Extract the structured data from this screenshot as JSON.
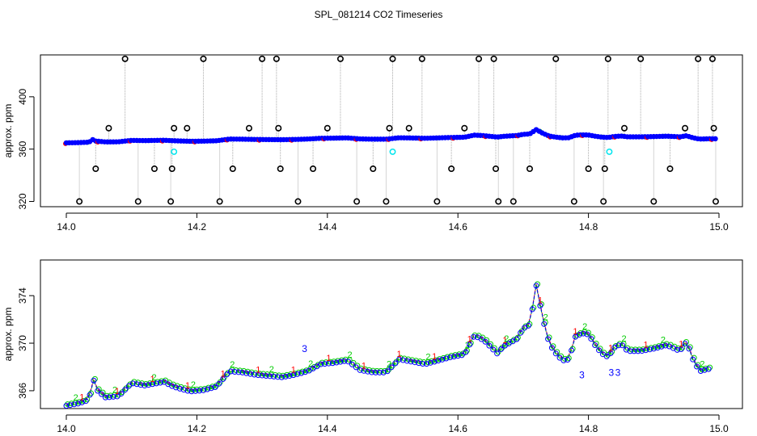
{
  "title": "SPL_081214  CO2 Timeseries",
  "chart_data": [
    {
      "type": "scatter",
      "title": "SPL_081214  CO2 Timeseries",
      "ylabel": "approx. ppm",
      "xlim": [
        14.0,
        15.0
      ],
      "ylim": [
        316,
        432
      ],
      "xticks": [
        "14.0",
        "14.2",
        "14.4",
        "14.6",
        "14.8",
        "15.0"
      ],
      "yticks": [
        "320",
        "360",
        "400"
      ],
      "colors": {
        "series1": "#ff0000",
        "series2": "#00cc00",
        "series3": "#0000ff",
        "reject": "#000000",
        "flag": "#00e5ee",
        "drop": "#aaaaaa"
      },
      "outlier_x": [
        14.02,
        14.045,
        14.065,
        14.09,
        14.11,
        14.135,
        14.16,
        14.162,
        14.165,
        14.185,
        14.21,
        14.235,
        14.255,
        14.28,
        14.3,
        14.322,
        14.325,
        14.328,
        14.355,
        14.378,
        14.4,
        14.42,
        14.445,
        14.47,
        14.49,
        14.495,
        14.5,
        14.525,
        14.545,
        14.568,
        14.59,
        14.61,
        14.632,
        14.655,
        14.658,
        14.662,
        14.685,
        14.71,
        14.75,
        14.778,
        14.8,
        14.823,
        14.825,
        14.83,
        14.855,
        14.88,
        14.9,
        14.925,
        14.948,
        14.968,
        14.99,
        14.992,
        14.995
      ],
      "outlier_y": [
        320,
        345,
        376,
        429,
        320,
        345,
        320,
        345,
        376,
        376,
        429,
        320,
        345,
        376,
        429,
        429,
        376,
        345,
        320,
        345,
        376,
        429,
        320,
        345,
        320,
        376,
        429,
        376,
        429,
        320,
        345,
        376,
        429,
        429,
        345,
        320,
        320,
        345,
        429,
        320,
        345,
        320,
        345,
        429,
        376,
        429,
        320,
        345,
        376,
        429,
        429,
        376,
        320
      ],
      "flag_points": [
        [
          14.165,
          358
        ],
        [
          14.5,
          358
        ],
        [
          14.832,
          358
        ]
      ]
    },
    {
      "type": "line",
      "ylabel": "approx. ppm",
      "xlim": [
        14.0,
        15.0
      ],
      "ylim": [
        364.5,
        377.0
      ],
      "xticks": [
        "14.0",
        "14.2",
        "14.4",
        "14.6",
        "14.8",
        "15.0"
      ],
      "yticks": [
        "366",
        "370",
        "374"
      ],
      "markers": [
        "1",
        "2",
        "3"
      ],
      "series": [
        {
          "name": "1",
          "color": "#ff0000"
        },
        {
          "name": "2",
          "color": "#00cc00"
        },
        {
          "name": "3",
          "color": "#0000ff"
        }
      ],
      "x": [
        14.0,
        14.02,
        14.035,
        14.04,
        14.045,
        14.06,
        14.08,
        14.1,
        14.12,
        14.15,
        14.16,
        14.17,
        14.19,
        14.21,
        14.23,
        14.25,
        14.27,
        14.29,
        14.31,
        14.33,
        14.35,
        14.37,
        14.39,
        14.41,
        14.43,
        14.45,
        14.47,
        14.49,
        14.51,
        14.53,
        14.55,
        14.57,
        14.59,
        14.61,
        14.625,
        14.64,
        14.66,
        14.67,
        14.69,
        14.7,
        14.71,
        14.72,
        14.73,
        14.74,
        14.75,
        14.76,
        14.77,
        14.78,
        14.79,
        14.8,
        14.81,
        14.82,
        14.83,
        14.84,
        14.85,
        14.86,
        14.88,
        14.9,
        14.92,
        14.94,
        14.95,
        14.96,
        14.97,
        14.985
      ],
      "y": [
        364.8,
        365.0,
        365.3,
        367.4,
        366.2,
        365.5,
        365.6,
        366.7,
        366.5,
        366.8,
        366.5,
        366.3,
        366.0,
        366.1,
        366.4,
        367.7,
        367.6,
        367.4,
        367.3,
        367.2,
        367.4,
        367.7,
        368.3,
        368.4,
        368.6,
        367.8,
        367.6,
        367.6,
        368.7,
        368.5,
        368.3,
        368.6,
        368.9,
        369.1,
        370.7,
        370.3,
        369.2,
        369.8,
        370.4,
        371.3,
        371.6,
        374.9,
        372.1,
        370.0,
        369.2,
        368.6,
        368.7,
        370.6,
        370.9,
        370.8,
        369.9,
        369.2,
        368.9,
        369.7,
        370.0,
        369.4,
        369.4,
        369.6,
        369.9,
        369.4,
        370.2,
        368.7,
        367.7,
        367.9
      ],
      "series3_x": [
        14.365,
        14.79,
        14.835,
        14.845
      ],
      "series3_y": [
        369.6,
        367.4,
        367.6,
        367.6
      ]
    }
  ]
}
